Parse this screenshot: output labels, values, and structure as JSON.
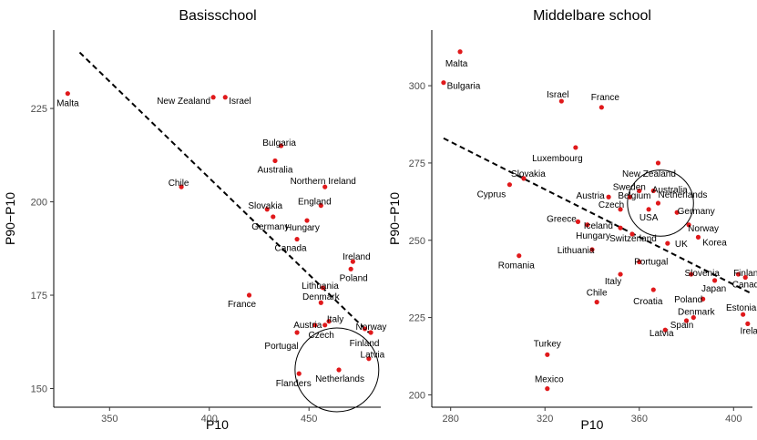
{
  "chart_data": [
    {
      "type": "scatter",
      "title": "Basisschool",
      "xlabel": "P10",
      "ylabel": "P90−P10",
      "xlim": [
        322,
        486
      ],
      "ylim": [
        145,
        246
      ],
      "xticks": [
        350,
        400,
        450
      ],
      "yticks": [
        150,
        175,
        200,
        225
      ],
      "trendline": {
        "x": [
          335,
          480
        ],
        "y": [
          240,
          165
        ]
      },
      "circle": {
        "cx": 464,
        "cy": 155,
        "r": 21
      },
      "points": [
        {
          "label": "Malta",
          "x": 329,
          "y": 229
        },
        {
          "label": "New Zealand",
          "x": 402,
          "y": 228
        },
        {
          "label": "Israel",
          "x": 408,
          "y": 228
        },
        {
          "label": "Bulgaria",
          "x": 436,
          "y": 215
        },
        {
          "label": "Australia",
          "x": 433,
          "y": 211
        },
        {
          "label": "Chile",
          "x": 386,
          "y": 204
        },
        {
          "label": "Northern Ireland",
          "x": 458,
          "y": 204
        },
        {
          "label": "England",
          "x": 456,
          "y": 199
        },
        {
          "label": "Slovakia",
          "x": 429,
          "y": 198
        },
        {
          "label": "Germany",
          "x": 432,
          "y": 196
        },
        {
          "label": "Hungary",
          "x": 449,
          "y": 195
        },
        {
          "label": "Canada",
          "x": 444,
          "y": 190
        },
        {
          "label": "Ireland",
          "x": 472,
          "y": 184
        },
        {
          "label": "Poland",
          "x": 471,
          "y": 182
        },
        {
          "label": "Lithuania",
          "x": 457,
          "y": 177
        },
        {
          "label": "France",
          "x": 420,
          "y": 175
        },
        {
          "label": "Denmark",
          "x": 456,
          "y": 173
        },
        {
          "label": "Italy",
          "x": 460,
          "y": 168
        },
        {
          "label": "Austria",
          "x": 453,
          "y": 167
        },
        {
          "label": "Czech",
          "x": 458,
          "y": 167
        },
        {
          "label": "Norway",
          "x": 478,
          "y": 166
        },
        {
          "label": "Portugal",
          "x": 444,
          "y": 165
        },
        {
          "label": "Finland",
          "x": 481,
          "y": 165
        },
        {
          "label": "Latvia",
          "x": 480,
          "y": 158
        },
        {
          "label": "Netherlands",
          "x": 465,
          "y": 155
        },
        {
          "label": "Flanders",
          "x": 445,
          "y": 154
        }
      ]
    },
    {
      "type": "scatter",
      "title": "Middelbare school",
      "xlabel": "P10",
      "ylabel": "P90−P10",
      "xlim": [
        272,
        408
      ],
      "ylim": [
        196,
        318
      ],
      "xticks": [
        280,
        320,
        360,
        400
      ],
      "yticks": [
        200,
        225,
        250,
        275,
        300
      ],
      "trendline": {
        "x": [
          277,
          407
        ],
        "y": [
          283,
          233
        ]
      },
      "circle": {
        "cx": 369,
        "cy": 262,
        "r": 14
      },
      "points": [
        {
          "label": "Malta",
          "x": 284,
          "y": 311
        },
        {
          "label": "Bulgaria",
          "x": 277,
          "y": 301
        },
        {
          "label": "Israel",
          "x": 327,
          "y": 295
        },
        {
          "label": "France",
          "x": 344,
          "y": 293
        },
        {
          "label": "Luxembourg",
          "x": 333,
          "y": 280
        },
        {
          "label": "New Zealand",
          "x": 368,
          "y": 275
        },
        {
          "label": "Slovakia",
          "x": 311,
          "y": 270
        },
        {
          "label": "Cyprus",
          "x": 305,
          "y": 268
        },
        {
          "label": "Sweden",
          "x": 360,
          "y": 266
        },
        {
          "label": "Australia",
          "x": 366,
          "y": 266
        },
        {
          "label": "Austria",
          "x": 347,
          "y": 264
        },
        {
          "label": "Belgium",
          "x": 356,
          "y": 264
        },
        {
          "label": "Netherlands",
          "x": 368,
          "y": 262
        },
        {
          "label": "USA",
          "x": 364,
          "y": 260
        },
        {
          "label": "Czech",
          "x": 352,
          "y": 260
        },
        {
          "label": "Germany",
          "x": 376,
          "y": 259
        },
        {
          "label": "Greece",
          "x": 334,
          "y": 256
        },
        {
          "label": "Iceland",
          "x": 338,
          "y": 255
        },
        {
          "label": "Norway",
          "x": 381,
          "y": 255
        },
        {
          "label": "Hungary",
          "x": 352,
          "y": 254
        },
        {
          "label": "Switzerland",
          "x": 357,
          "y": 252
        },
        {
          "label": "Korea",
          "x": 385,
          "y": 251
        },
        {
          "label": "UK",
          "x": 372,
          "y": 249
        },
        {
          "label": "Lithuania",
          "x": 340,
          "y": 247
        },
        {
          "label": "Romania",
          "x": 309,
          "y": 245
        },
        {
          "label": "Portugal",
          "x": 360,
          "y": 243
        },
        {
          "label": "Italy",
          "x": 352,
          "y": 239
        },
        {
          "label": "Slovenia",
          "x": 382,
          "y": 239
        },
        {
          "label": "Finland",
          "x": 402,
          "y": 239
        },
        {
          "label": "Japan",
          "x": 392,
          "y": 237
        },
        {
          "label": "Canada",
          "x": 405,
          "y": 238
        },
        {
          "label": "Croatia",
          "x": 366,
          "y": 234
        },
        {
          "label": "Poland",
          "x": 387,
          "y": 231
        },
        {
          "label": "Chile",
          "x": 342,
          "y": 230
        },
        {
          "label": "Estonia",
          "x": 404,
          "y": 226
        },
        {
          "label": "Denmark",
          "x": 383,
          "y": 225
        },
        {
          "label": "Spain",
          "x": 380,
          "y": 224
        },
        {
          "label": "Ireland",
          "x": 406,
          "y": 223
        },
        {
          "label": "Latvia",
          "x": 371,
          "y": 221
        },
        {
          "label": "Turkey",
          "x": 321,
          "y": 213
        },
        {
          "label": "Mexico",
          "x": 321,
          "y": 202
        }
      ]
    }
  ]
}
